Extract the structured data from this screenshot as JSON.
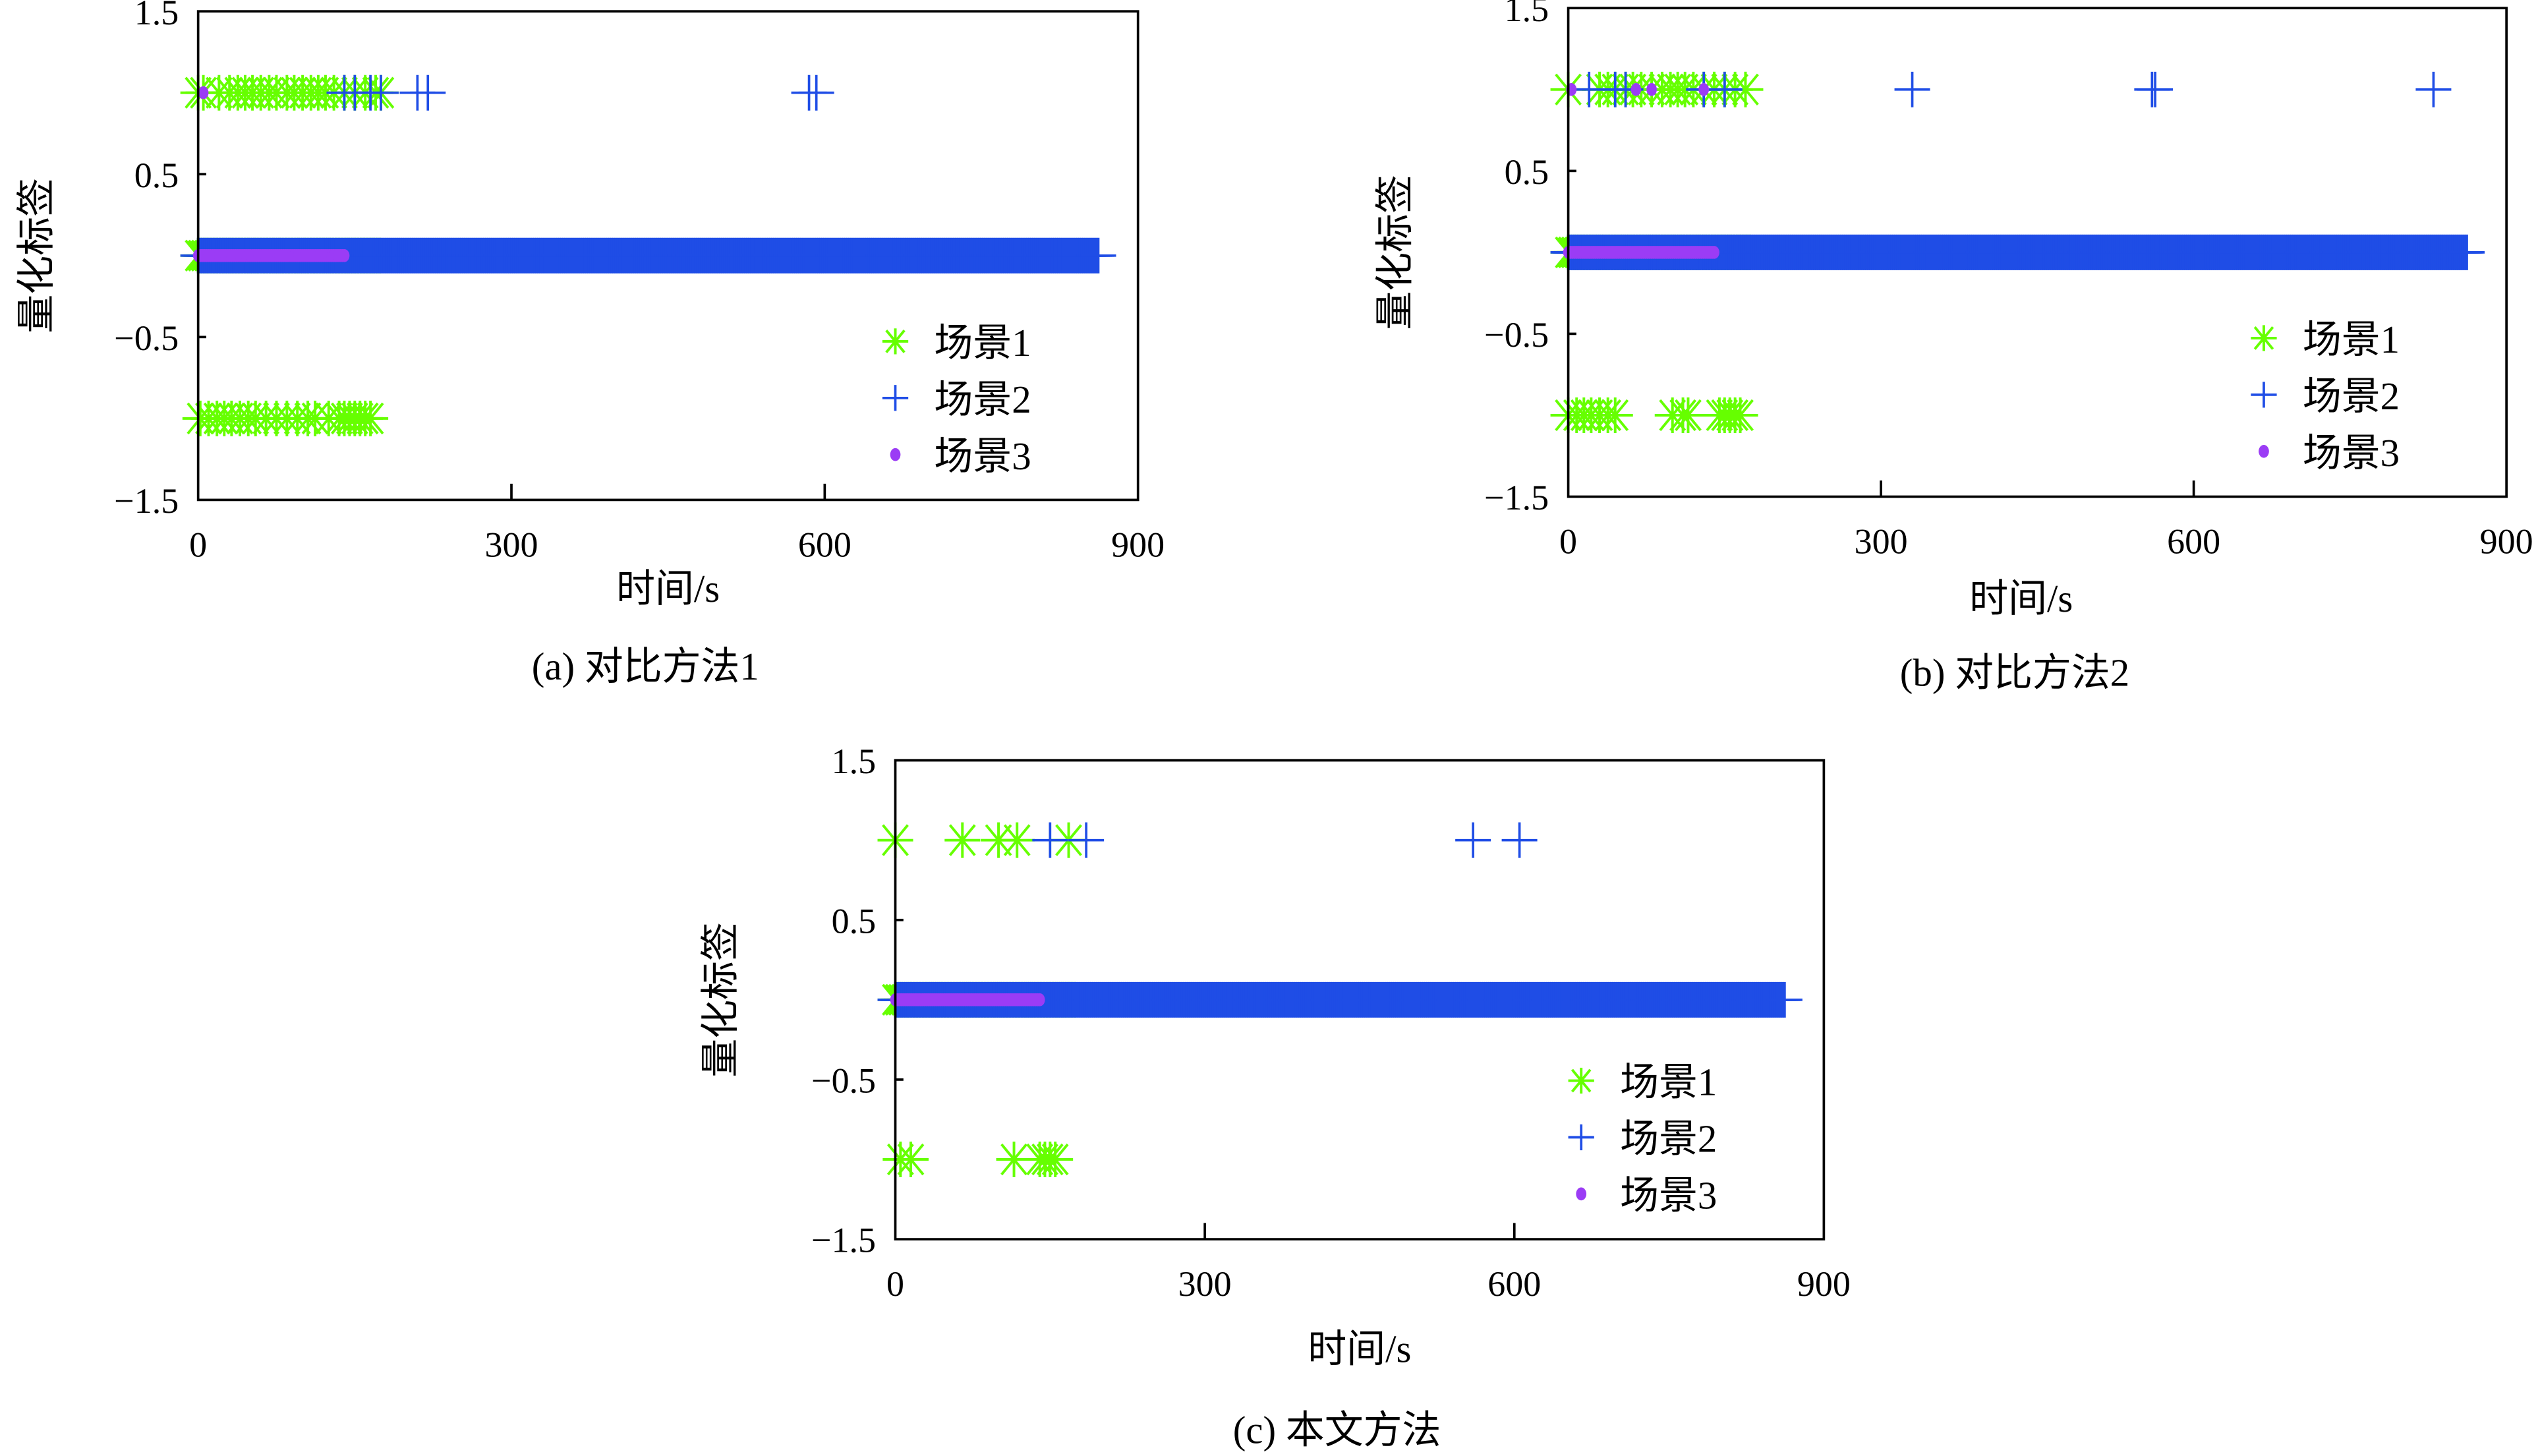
{
  "chart_data": [
    {
      "type": "scatter",
      "caption": "(a) 对比方法1",
      "xlabel": "时间/s",
      "ylabel": "量化标签",
      "xlim": [
        0,
        900
      ],
      "ylim": [
        -1.5,
        1.5
      ],
      "xticks": [
        "0",
        "300",
        "600",
        "900"
      ],
      "yticks": [
        "1.5",
        "0.5",
        "−0.5",
        "−1.5"
      ],
      "legend": {
        "position": "bottom-right",
        "entries": [
          "场景1",
          "场景2",
          "场景3"
        ]
      },
      "series": [
        {
          "name": "场景1",
          "marker": "asterisk",
          "color": "#66ff00",
          "points": [
            {
              "y": 1,
              "x": [
                0,
                5,
                20,
                30,
                38,
                45,
                52,
                60,
                68,
                75,
                85,
                92,
                100,
                108,
                115,
                122,
                130,
                140,
                150,
                160,
                170,
                175
              ]
            },
            {
              "y": -1,
              "x": [
                2,
                10,
                18,
                25,
                32,
                40,
                48,
                55,
                65,
                75,
                85,
                95,
                105,
                112,
                125,
                135,
                140,
                145,
                150,
                155,
                160,
                165
              ]
            }
          ],
          "dense": [
            {
              "y": 0,
              "from": 0,
              "to": 175,
              "step": 3
            }
          ]
        },
        {
          "name": "场景2",
          "marker": "plus",
          "color": "#1f4de6",
          "points": [
            {
              "y": 1,
              "x": [
                140,
                150,
                165,
                175,
                210,
                220,
                585,
                592
              ]
            }
          ],
          "dense": [
            {
              "y": 0,
              "from": 0,
              "to": 862,
              "step": 2
            }
          ]
        },
        {
          "name": "场景3",
          "marker": "dot",
          "color": "#9b3cf5",
          "points": [
            {
              "y": 1,
              "x": [
                5
              ]
            }
          ],
          "dense": [
            {
              "y": 0,
              "from": 0,
              "to": 140,
              "step": 2
            }
          ]
        }
      ]
    },
    {
      "type": "scatter",
      "caption": "(b) 对比方法2",
      "xlabel": "时间/s",
      "ylabel": "量化标签",
      "xlim": [
        0,
        900
      ],
      "ylim": [
        -1.5,
        1.5
      ],
      "xticks": [
        "0",
        "300",
        "600",
        "900"
      ],
      "yticks": [
        "1.5",
        "0.5",
        "−0.5",
        "−1.5"
      ],
      "legend": {
        "position": "bottom-right",
        "entries": [
          "场景1",
          "场景2",
          "场景3"
        ]
      },
      "series": [
        {
          "name": "场景1",
          "marker": "asterisk",
          "color": "#66ff00",
          "points": [
            {
              "y": 1,
              "x": [
                0,
                30,
                38,
                45,
                55,
                62,
                70,
                80,
                90,
                98,
                105,
                112,
                120,
                130,
                140,
                150,
                160,
                170
              ]
            },
            {
              "y": -1,
              "x": [
                0,
                8,
                15,
                22,
                30,
                38,
                45,
                100,
                110,
                115,
                145,
                150,
                155,
                160,
                165
              ]
            }
          ],
          "dense": [
            {
              "y": 0,
              "from": 0,
              "to": 175,
              "step": 3
            }
          ]
        },
        {
          "name": "场景2",
          "marker": "plus",
          "color": "#1f4de6",
          "points": [
            {
              "y": 1,
              "x": [
                20,
                45,
                55,
                130,
                150,
                330,
                560,
                563,
                830
              ]
            }
          ],
          "dense": [
            {
              "y": 0,
              "from": 0,
              "to": 862,
              "step": 2
            }
          ]
        },
        {
          "name": "场景3",
          "marker": "dot",
          "color": "#9b3cf5",
          "points": [
            {
              "y": 1,
              "x": [
                3,
                65,
                80,
                130
              ]
            }
          ],
          "dense": [
            {
              "y": 0,
              "from": 0,
              "to": 140,
              "step": 2
            }
          ]
        }
      ]
    },
    {
      "type": "scatter",
      "caption": "(c) 本文方法",
      "xlabel": "时间/s",
      "ylabel": "量化标签",
      "xlim": [
        0,
        900
      ],
      "ylim": [
        -1.5,
        1.5
      ],
      "xticks": [
        "0",
        "300",
        "600",
        "900"
      ],
      "yticks": [
        "1.5",
        "0.5",
        "−0.5",
        "−1.5"
      ],
      "legend": {
        "position": "bottom-right",
        "entries": [
          "场景1",
          "场景2",
          "场景3"
        ]
      },
      "series": [
        {
          "name": "场景1",
          "marker": "asterisk",
          "color": "#66ff00",
          "points": [
            {
              "y": 1,
              "x": [
                0,
                65,
                100,
                118,
                168
              ]
            },
            {
              "y": -1,
              "x": [
                5,
                15,
                115,
                140,
                145,
                150,
                155
              ]
            }
          ],
          "dense": [
            {
              "y": 0,
              "from": 0,
              "to": 175,
              "step": 3
            }
          ]
        },
        {
          "name": "场景2",
          "marker": "plus",
          "color": "#1f4de6",
          "points": [
            {
              "y": 1,
              "x": [
                150,
                185,
                560,
                605
              ]
            }
          ],
          "dense": [
            {
              "y": 0,
              "from": 0,
              "to": 862,
              "step": 2
            }
          ]
        },
        {
          "name": "场景3",
          "marker": "dot",
          "color": "#9b3cf5",
          "points": [],
          "dense": [
            {
              "y": 0,
              "from": 0,
              "to": 140,
              "step": 2
            }
          ]
        }
      ]
    }
  ]
}
